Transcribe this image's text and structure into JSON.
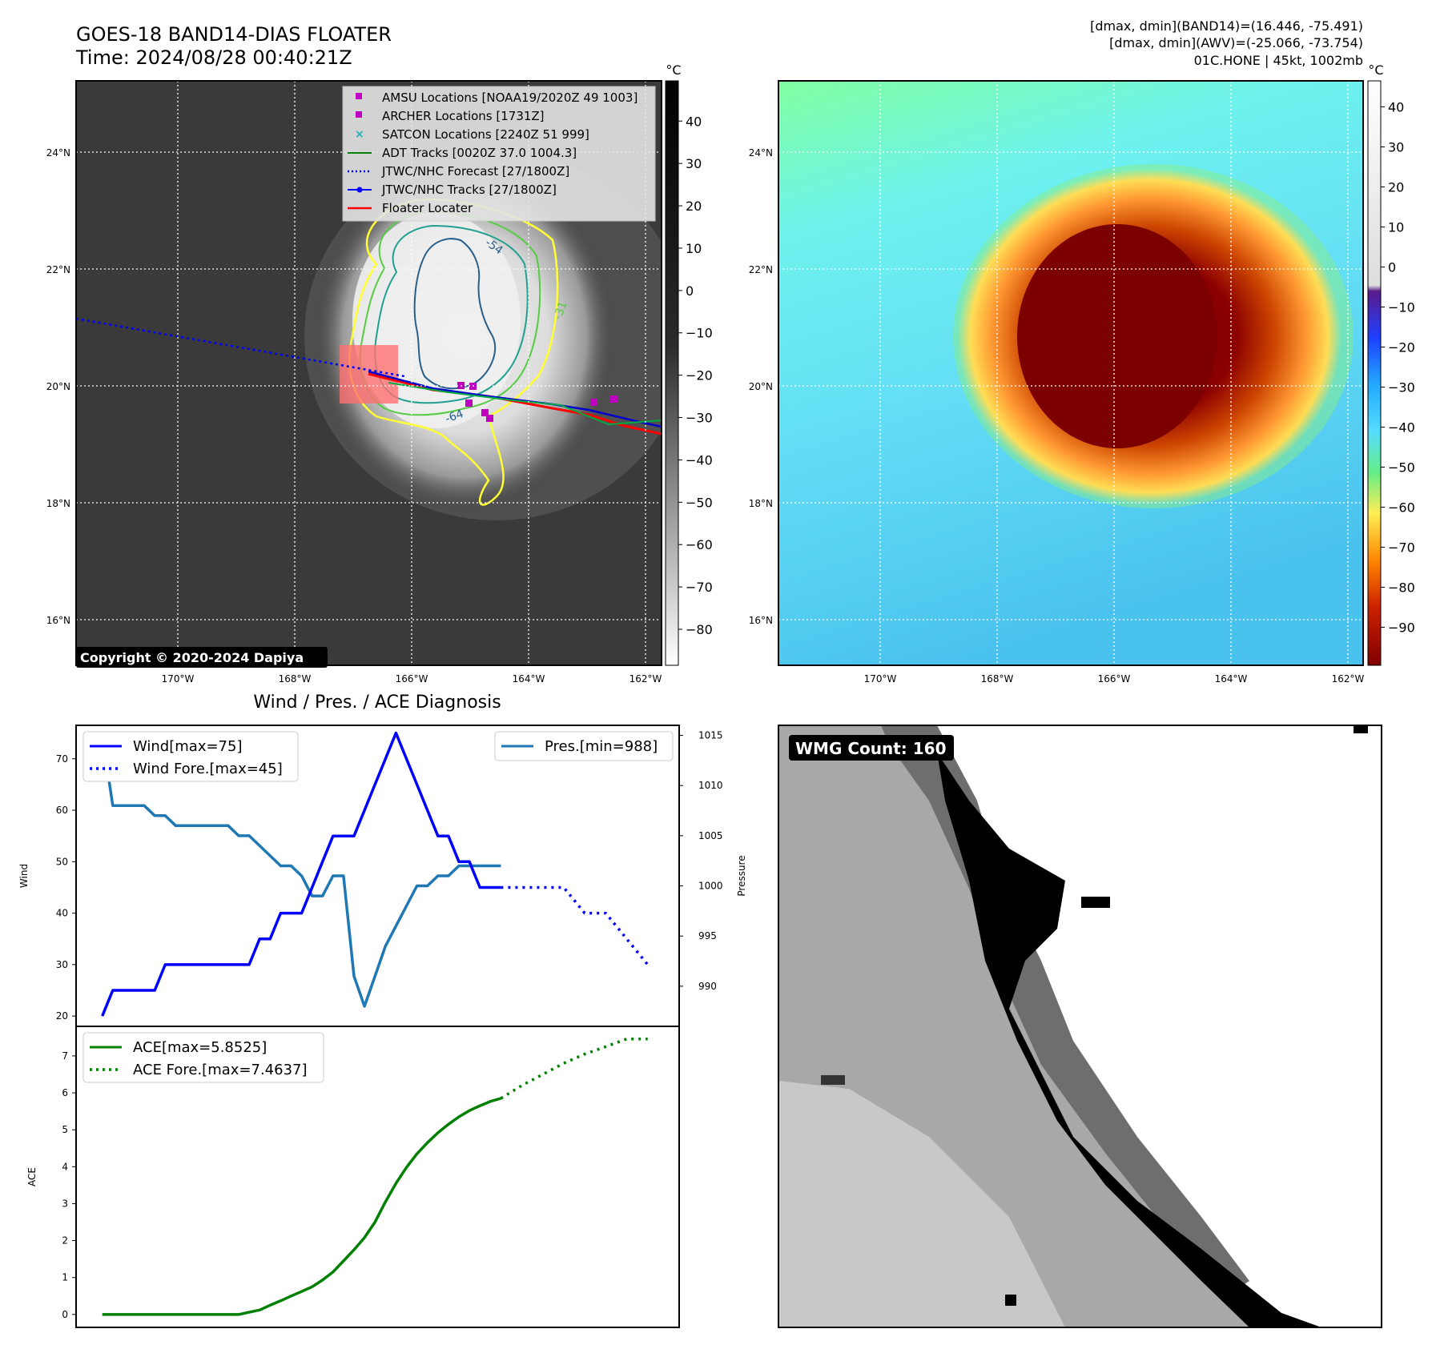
{
  "header": {
    "title_line1": "GOES-18 BAND14-DIAS FLOATER",
    "title_line2": "Time: 2024/08/28 00:40:21Z",
    "info_line1": "[dmax, dmin](BAND14)=(16.446, -75.491)",
    "info_line2": "[dmax, dmin](AWV)=(-25.066, -73.754)",
    "info_line3": "01C.HONE | 45kt, 1002mb"
  },
  "ir_panel": {
    "colorbar_unit": "°C",
    "colorbar_ticks": [
      "40",
      "30",
      "20",
      "10",
      "0",
      "−10",
      "−20",
      "−30",
      "−40",
      "−50",
      "−60",
      "−70",
      "−80"
    ],
    "lat_labels": [
      "24°N",
      "22°N",
      "20°N",
      "18°N",
      "16°N"
    ],
    "lon_labels": [
      "170°W",
      "168°W",
      "166°W",
      "164°W",
      "162°W"
    ],
    "copyright": "Copyright © 2020-2024 Dapiya",
    "contour_labels": [
      "-54",
      "-64",
      "-31"
    ],
    "legend": [
      {
        "label": "AMSU Locations [NOAA19/2020Z 49 1003]",
        "color": "#c000c0",
        "marker": "square"
      },
      {
        "label": "ARCHER Locations [1731Z]",
        "color": "#c000c0",
        "marker": "square"
      },
      {
        "label": "SATCON Locations [2240Z 51 999]",
        "color": "#20b0b0",
        "marker": "x"
      },
      {
        "label": "ADT Tracks [0020Z 37.0 1004.3]",
        "color": "#008000",
        "marker": "line"
      },
      {
        "label": "JTWC/NHC Forecast [27/1800Z]",
        "color": "#0000ff",
        "marker": "dotted"
      },
      {
        "label": "JTWC/NHC Tracks [27/1800Z]",
        "color": "#0000ff",
        "marker": "line-dot"
      },
      {
        "label": "Floater Locater",
        "color": "#ff0000",
        "marker": "line"
      }
    ]
  },
  "awv_panel": {
    "colorbar_unit": "°C",
    "colorbar_ticks": [
      "40",
      "30",
      "20",
      "10",
      "0",
      "−10",
      "−20",
      "−30",
      "−40",
      "−50",
      "−60",
      "−70",
      "−80",
      "−90"
    ],
    "lat_labels": [
      "24°N",
      "22°N",
      "20°N",
      "18°N",
      "16°N"
    ],
    "lon_labels": [
      "170°W",
      "168°W",
      "166°W",
      "164°W",
      "162°W"
    ]
  },
  "wmg_panel": {
    "badge": "WMG Count: 160"
  },
  "diagnosis": {
    "title": "Wind / Pres. / ACE Diagnosis",
    "wind_ylabel": "Wind",
    "pres_ylabel": "Pressure",
    "ace_ylabel": "ACE",
    "wind_ticks": [
      "70",
      "60",
      "50",
      "40",
      "30",
      "20"
    ],
    "pres_ticks": [
      "1015",
      "1010",
      "1005",
      "1000",
      "995",
      "990"
    ],
    "ace_ticks": [
      "7",
      "6",
      "5",
      "4",
      "3",
      "2",
      "1",
      "0"
    ],
    "legend_wind": "Wind[max=75]",
    "legend_wind_fore": "Wind Fore.[max=45]",
    "legend_pres": "Pres.[min=988]",
    "legend_ace": "ACE[max=5.8525]",
    "legend_ace_fore": "ACE Fore.[max=7.4637]"
  },
  "chart_data": [
    {
      "type": "line",
      "title": "Wind / Pres. / ACE Diagnosis",
      "xlabel": "",
      "ylabel": "Wind",
      "ylim": [
        18,
        76.5
      ],
      "series": [
        {
          "name": "Wind[max=75]",
          "color": "#0000ff",
          "style": "solid",
          "x": [
            0,
            1,
            2,
            3,
            4,
            5,
            6,
            7,
            8,
            9,
            10,
            11,
            12,
            13,
            14,
            15,
            16,
            17,
            18,
            19,
            20,
            21,
            22,
            23,
            24,
            25,
            26,
            27,
            28,
            29,
            30,
            31,
            32,
            33,
            34,
            35,
            36,
            37,
            38
          ],
          "values": [
            20,
            25,
            25,
            25,
            25,
            25,
            30,
            30,
            30,
            30,
            30,
            30,
            30,
            30,
            30,
            35,
            35,
            40,
            40,
            40,
            45,
            50,
            55,
            55,
            55,
            60,
            65,
            70,
            75,
            70,
            65,
            60,
            55,
            55,
            50,
            50,
            45,
            45,
            45
          ]
        },
        {
          "name": "Wind Fore.[max=45]",
          "color": "#0000ff",
          "style": "dotted",
          "x": [
            38,
            40,
            42,
            44,
            46,
            48,
            50,
            52
          ],
          "values": [
            45,
            45,
            45,
            45,
            40,
            40,
            35,
            30
          ]
        }
      ]
    },
    {
      "type": "line",
      "ylabel": "Pressure",
      "ylim": [
        986,
        1016
      ],
      "series": [
        {
          "name": "Pres.[min=988]",
          "color": "#1f77b4",
          "style": "solid",
          "x": [
            0,
            1,
            2,
            3,
            4,
            5,
            6,
            7,
            8,
            9,
            10,
            11,
            12,
            13,
            14,
            15,
            16,
            17,
            18,
            19,
            20,
            21,
            22,
            23,
            24,
            25,
            26,
            27,
            28,
            29,
            30,
            31,
            32,
            33,
            34,
            35,
            36,
            37,
            38
          ],
          "values": [
            1015,
            1008,
            1008,
            1008,
            1008,
            1007,
            1007,
            1006,
            1006,
            1006,
            1006,
            1006,
            1006,
            1005,
            1005,
            1004,
            1003,
            1002,
            1002,
            1001,
            999,
            999,
            1001,
            1001,
            991,
            988,
            991,
            994,
            996,
            998,
            1000,
            1000,
            1001,
            1001,
            1002,
            1002,
            1002,
            1002,
            1002
          ]
        }
      ]
    },
    {
      "type": "line",
      "ylabel": "ACE",
      "ylim": [
        -0.35,
        7.8
      ],
      "series": [
        {
          "name": "ACE[max=5.8525]",
          "color": "#008000",
          "style": "solid",
          "x": [
            0,
            1,
            2,
            3,
            4,
            5,
            6,
            7,
            8,
            9,
            10,
            11,
            12,
            13,
            14,
            15,
            16,
            17,
            18,
            19,
            20,
            21,
            22,
            23,
            24,
            25,
            26,
            27,
            28,
            29,
            30,
            31,
            32,
            33,
            34,
            35,
            36,
            37,
            38
          ],
          "values": [
            0,
            0,
            0,
            0,
            0,
            0,
            0,
            0,
            0,
            0,
            0,
            0,
            0,
            0,
            0.06,
            0.12,
            0.25,
            0.37,
            0.5,
            0.62,
            0.75,
            0.93,
            1.15,
            1.45,
            1.75,
            2.08,
            2.5,
            3.05,
            3.55,
            3.98,
            4.35,
            4.65,
            4.92,
            5.15,
            5.35,
            5.52,
            5.65,
            5.77,
            5.85
          ]
        },
        {
          "name": "ACE Fore.[max=7.4637]",
          "color": "#008000",
          "style": "dotted",
          "x": [
            38,
            40,
            42,
            44,
            46,
            48,
            50,
            52
          ],
          "values": [
            5.85,
            6.2,
            6.5,
            6.8,
            7.05,
            7.25,
            7.46,
            7.46
          ]
        }
      ]
    }
  ]
}
